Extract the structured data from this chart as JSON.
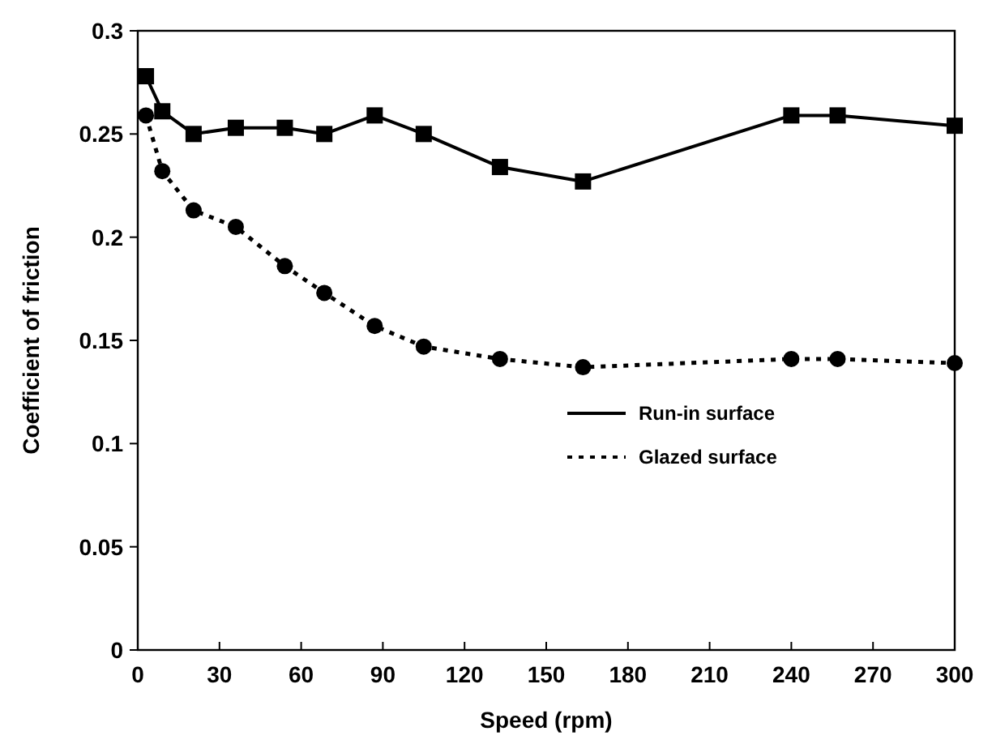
{
  "chart_data": {
    "type": "line",
    "xlabel": "Speed (rpm)",
    "ylabel": "Coefficient of friction",
    "x": [
      3,
      9,
      20.5,
      36,
      54,
      68.5,
      87,
      105,
      133,
      163.5,
      240,
      257,
      300
    ],
    "xlim": [
      0,
      300
    ],
    "xticks": [
      0,
      30,
      60,
      90,
      120,
      150,
      180,
      210,
      240,
      270,
      300
    ],
    "ylim": [
      0,
      0.3
    ],
    "yticks": [
      0,
      0.05,
      0.1,
      0.15,
      0.2,
      0.25,
      0.3
    ],
    "grid": false,
    "legend": "right",
    "series": [
      {
        "name": "Run-in surface",
        "color": "#000000",
        "marker": "square",
        "line_style": "solid",
        "values": [
          0.278,
          0.261,
          0.25,
          0.253,
          0.253,
          0.25,
          0.259,
          0.25,
          0.234,
          0.227,
          0.259,
          0.259,
          0.254
        ]
      },
      {
        "name": "Glazed surface",
        "color": "#000000",
        "marker": "circle",
        "line_style": "dotted",
        "values": [
          0.259,
          0.232,
          0.213,
          0.205,
          0.186,
          0.173,
          0.157,
          0.147,
          0.141,
          0.137,
          0.141,
          0.141,
          0.139
        ]
      }
    ]
  }
}
